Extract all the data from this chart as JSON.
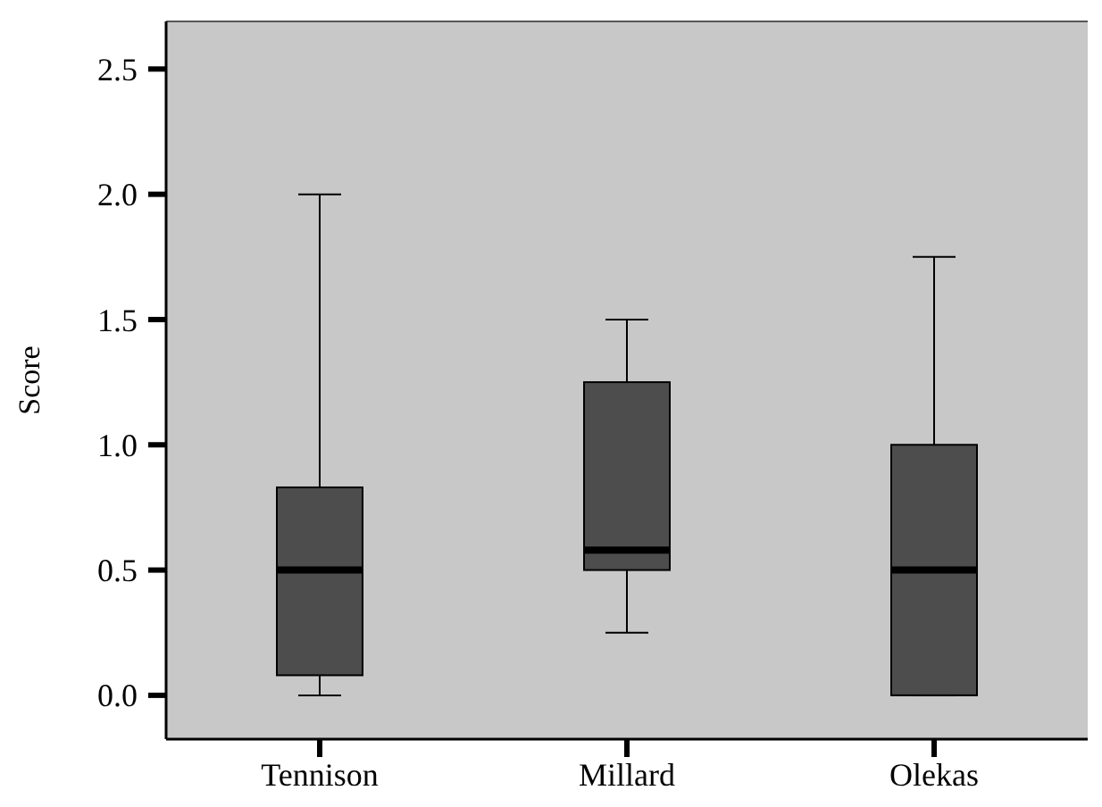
{
  "chart_data": {
    "type": "box",
    "ylabel": "Score",
    "categories": [
      "Tennison",
      "Millard",
      "Olekas"
    ],
    "color": "#4d4d4d",
    "boxes": [
      {
        "low": 0,
        "q1": 0.08,
        "median": 0.5,
        "q3": 0.83,
        "high": 2.0
      },
      {
        "low": 0.25,
        "q1": 0.5,
        "median": 0.58,
        "q3": 1.25,
        "high": 1.5
      },
      {
        "low": 0,
        "q1": 0,
        "median": 0.5,
        "q3": 1.0,
        "high": 1.75
      }
    ],
    "ylim": [
      -0.175,
      2.69
    ],
    "yticks": [
      {
        "value": 0,
        "label": "0.0"
      },
      {
        "value": 0.5,
        "label": "0.5"
      },
      {
        "value": 1,
        "label": "1.0"
      },
      {
        "value": 1.5,
        "label": "1.5"
      },
      {
        "value": 2,
        "label": "2.0"
      },
      {
        "value": 2.5,
        "label": "2.5"
      }
    ],
    "grid": false
  }
}
